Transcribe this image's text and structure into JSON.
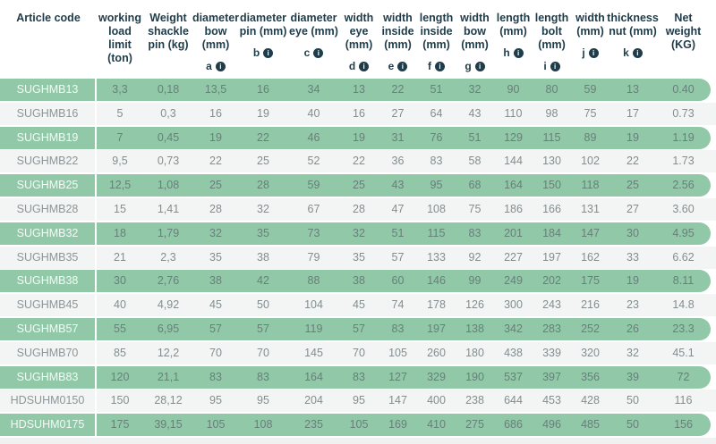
{
  "table": {
    "info_icon_glyph": "i",
    "colors": {
      "row_green": "#90c8a8",
      "row_light": "#f3f5f4",
      "header_text": "#1e3c4a",
      "value_text_on_green": "#68807a",
      "value_text_on_light": "#838d8f",
      "article_text_on_green": "#f4faf6"
    },
    "columns": [
      {
        "label": "Article code",
        "letter": null
      },
      {
        "label": "working load limit (ton)",
        "letter": null
      },
      {
        "label": "Weight shackle pin (kg)",
        "letter": null
      },
      {
        "label": "diameter bow (mm)",
        "letter": "a"
      },
      {
        "label": "diameter pin (mm)",
        "letter": "b"
      },
      {
        "label": "diameter eye (mm)",
        "letter": "c"
      },
      {
        "label": "width eye (mm)",
        "letter": "d"
      },
      {
        "label": "width inside (mm)",
        "letter": "e"
      },
      {
        "label": "length inside (mm)",
        "letter": "f"
      },
      {
        "label": "width bow (mm)",
        "letter": "g"
      },
      {
        "label": "length (mm)",
        "letter": "h"
      },
      {
        "label": "length bolt (mm)",
        "letter": "i"
      },
      {
        "label": "width (mm)",
        "letter": "j"
      },
      {
        "label": "thickness nut (mm)",
        "letter": "k"
      },
      {
        "label": "Net weight (KG)",
        "letter": null
      }
    ],
    "rows": [
      {
        "article": "SUGHMB13",
        "values": [
          "3,3",
          "0,18",
          "13,5",
          "16",
          "34",
          "13",
          "22",
          "51",
          "32",
          "90",
          "80",
          "59",
          "13",
          "0.40"
        ]
      },
      {
        "article": "SUGHMB16",
        "values": [
          "5",
          "0,3",
          "16",
          "19",
          "40",
          "16",
          "27",
          "64",
          "43",
          "110",
          "98",
          "75",
          "17",
          "0.73"
        ]
      },
      {
        "article": "SUGHMB19",
        "values": [
          "7",
          "0,45",
          "19",
          "22",
          "46",
          "19",
          "31",
          "76",
          "51",
          "129",
          "115",
          "89",
          "19",
          "1.19"
        ]
      },
      {
        "article": "SUGHMB22",
        "values": [
          "9,5",
          "0,73",
          "22",
          "25",
          "52",
          "22",
          "36",
          "83",
          "58",
          "144",
          "130",
          "102",
          "22",
          "1.73"
        ]
      },
      {
        "article": "SUGHMB25",
        "values": [
          "12,5",
          "1,08",
          "25",
          "28",
          "59",
          "25",
          "43",
          "95",
          "68",
          "164",
          "150",
          "118",
          "25",
          "2.56"
        ]
      },
      {
        "article": "SUGHMB28",
        "values": [
          "15",
          "1,41",
          "28",
          "32",
          "67",
          "28",
          "47",
          "108",
          "75",
          "186",
          "166",
          "131",
          "27",
          "3.60"
        ]
      },
      {
        "article": "SUGHMB32",
        "values": [
          "18",
          "1,79",
          "32",
          "35",
          "73",
          "32",
          "51",
          "115",
          "83",
          "201",
          "184",
          "147",
          "30",
          "4.95"
        ]
      },
      {
        "article": "SUGHMB35",
        "values": [
          "21",
          "2,3",
          "35",
          "38",
          "79",
          "35",
          "57",
          "133",
          "92",
          "227",
          "197",
          "162",
          "33",
          "6.62"
        ]
      },
      {
        "article": "SUGHMB38",
        "values": [
          "30",
          "2,76",
          "38",
          "42",
          "88",
          "38",
          "60",
          "146",
          "99",
          "249",
          "202",
          "175",
          "19",
          "8.11"
        ]
      },
      {
        "article": "SUGHMB45",
        "values": [
          "40",
          "4,92",
          "45",
          "50",
          "104",
          "45",
          "74",
          "178",
          "126",
          "300",
          "243",
          "216",
          "23",
          "14.8"
        ]
      },
      {
        "article": "SUGHMB57",
        "values": [
          "55",
          "6,95",
          "57",
          "57",
          "119",
          "57",
          "83",
          "197",
          "138",
          "342",
          "283",
          "252",
          "26",
          "23.3"
        ]
      },
      {
        "article": "SUGHMB70",
        "values": [
          "85",
          "12,2",
          "70",
          "70",
          "145",
          "70",
          "105",
          "260",
          "180",
          "438",
          "339",
          "320",
          "32",
          "45.1"
        ]
      },
      {
        "article": "SUGHMB83",
        "values": [
          "120",
          "21,1",
          "83",
          "83",
          "164",
          "83",
          "127",
          "329",
          "190",
          "537",
          "397",
          "356",
          "39",
          "72"
        ]
      },
      {
        "article": "HDSUHM0150",
        "values": [
          "150",
          "28,12",
          "95",
          "95",
          "204",
          "95",
          "147",
          "400",
          "238",
          "644",
          "453",
          "428",
          "50",
          "116"
        ]
      },
      {
        "article": "HDSUHM0175",
        "values": [
          "175",
          "39,15",
          "105",
          "108",
          "235",
          "105",
          "169",
          "410",
          "275",
          "686",
          "496",
          "485",
          "50",
          "156"
        ]
      }
    ]
  }
}
